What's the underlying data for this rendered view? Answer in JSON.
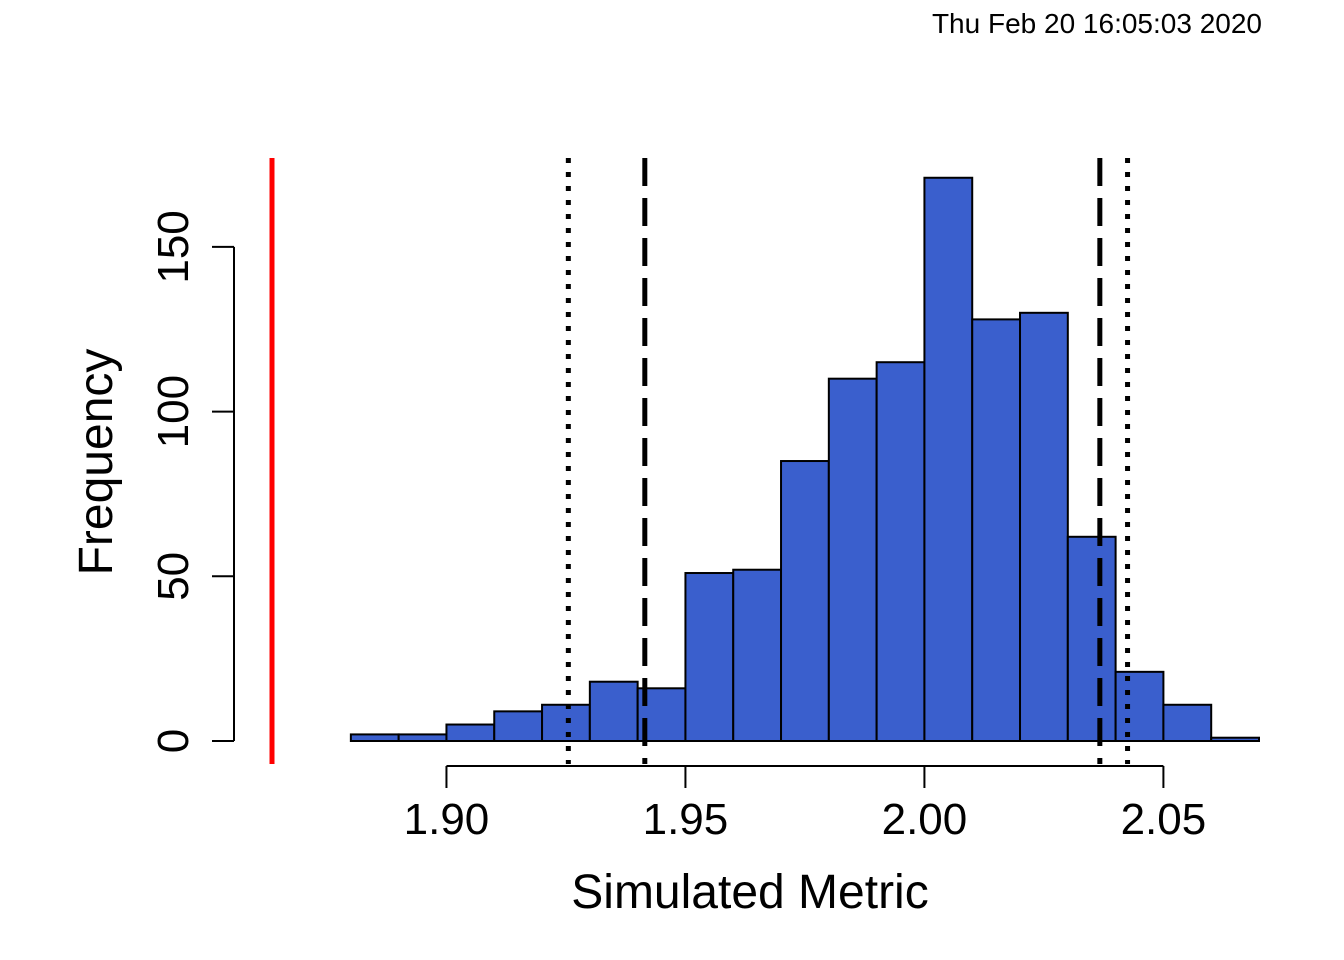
{
  "timestamp": "Thu Feb 20 16:05:03 2020",
  "chart_data": {
    "type": "bar",
    "subtype": "histogram",
    "title": "",
    "xlabel": "Simulated Metric",
    "ylabel": "Frequency",
    "xlim": [
      1.8635,
      2.07
    ],
    "ylim": [
      0,
      177
    ],
    "xticks": [
      "1.90",
      "1.95",
      "2.00",
      "2.05"
    ],
    "yticks": [
      "0",
      "50",
      "100",
      "150"
    ],
    "bin_edges": [
      1.88,
      1.89,
      1.9,
      1.91,
      1.92,
      1.93,
      1.94,
      1.95,
      1.96,
      1.97,
      1.98,
      1.99,
      2.0,
      2.01,
      2.02,
      2.03,
      2.04,
      2.05,
      2.06,
      2.07
    ],
    "values": [
      2,
      2,
      5,
      9,
      11,
      18,
      16,
      51,
      52,
      85,
      110,
      115,
      171,
      128,
      130,
      62,
      21,
      11,
      1
    ],
    "bar_color": "#3a5fcd",
    "reference_lines": [
      {
        "style": "solid",
        "color": "#ff0000",
        "x": 1.8635
      },
      {
        "style": "dotted",
        "color": "#000000",
        "x": 1.9255
      },
      {
        "style": "dashed",
        "color": "#000000",
        "x": 1.9415
      },
      {
        "style": "dashed",
        "color": "#000000",
        "x": 2.0367
      },
      {
        "style": "dotted",
        "color": "#000000",
        "x": 2.0425
      }
    ]
  }
}
